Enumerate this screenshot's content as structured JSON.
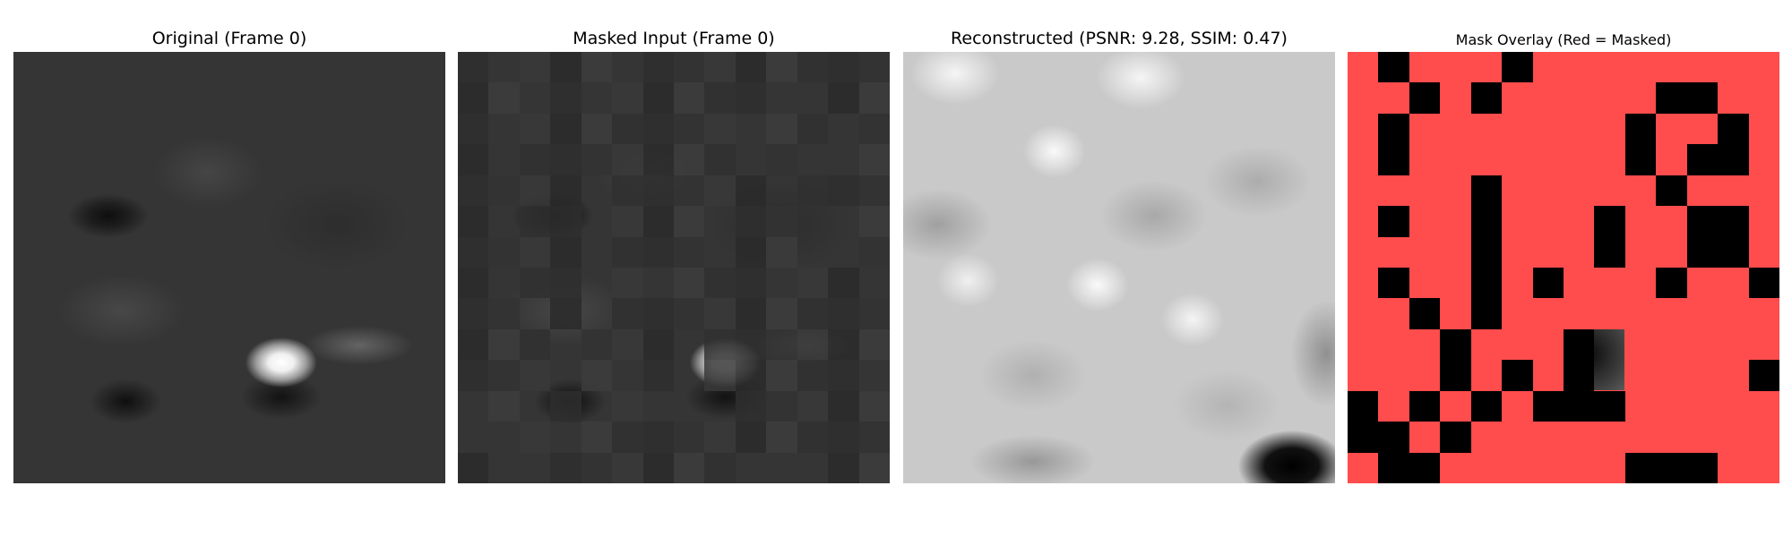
{
  "panels": {
    "original_title": "Original (Frame 0)",
    "masked_title": "Masked Input (Frame 0)",
    "reconstructed_title": "Reconstructed (PSNR: 9.28, SSIM: 0.47)",
    "overlay_title": "Mask Overlay (Red = Masked)"
  },
  "colors": {
    "mask_red": "#ff4c4c",
    "visible_black": "#000000",
    "background": "#ffffff"
  },
  "grid_size": 14,
  "visible_patches": [
    [
      1,
      0
    ],
    [
      5,
      0
    ],
    [
      2,
      1
    ],
    [
      4,
      1
    ],
    [
      10,
      1
    ],
    [
      11,
      1
    ],
    [
      1,
      2
    ],
    [
      9,
      2
    ],
    [
      12,
      2
    ],
    [
      1,
      3
    ],
    [
      9,
      3
    ],
    [
      11,
      3
    ],
    [
      12,
      3
    ],
    [
      4,
      4
    ],
    [
      10,
      4
    ],
    [
      4,
      5
    ],
    [
      1,
      5
    ],
    [
      8,
      5
    ],
    [
      11,
      5
    ],
    [
      12,
      5
    ],
    [
      4,
      6
    ],
    [
      8,
      6
    ],
    [
      11,
      6
    ],
    [
      12,
      6
    ],
    [
      1,
      7
    ],
    [
      4,
      7
    ],
    [
      6,
      7
    ],
    [
      10,
      7
    ],
    [
      13,
      7
    ],
    [
      4,
      8
    ],
    [
      2,
      8
    ],
    [
      3,
      9
    ],
    [
      7,
      9
    ],
    [
      3,
      10
    ],
    [
      7,
      10
    ],
    [
      5,
      10
    ],
    [
      13,
      10
    ],
    [
      0,
      11
    ],
    [
      2,
      11
    ],
    [
      4,
      11
    ],
    [
      6,
      11
    ],
    [
      7,
      11
    ],
    [
      8,
      11
    ],
    [
      0,
      12
    ],
    [
      1,
      12
    ],
    [
      3,
      12
    ],
    [
      1,
      13
    ],
    [
      2,
      13
    ],
    [
      9,
      13
    ],
    [
      10,
      13
    ],
    [
      11,
      13
    ]
  ]
}
